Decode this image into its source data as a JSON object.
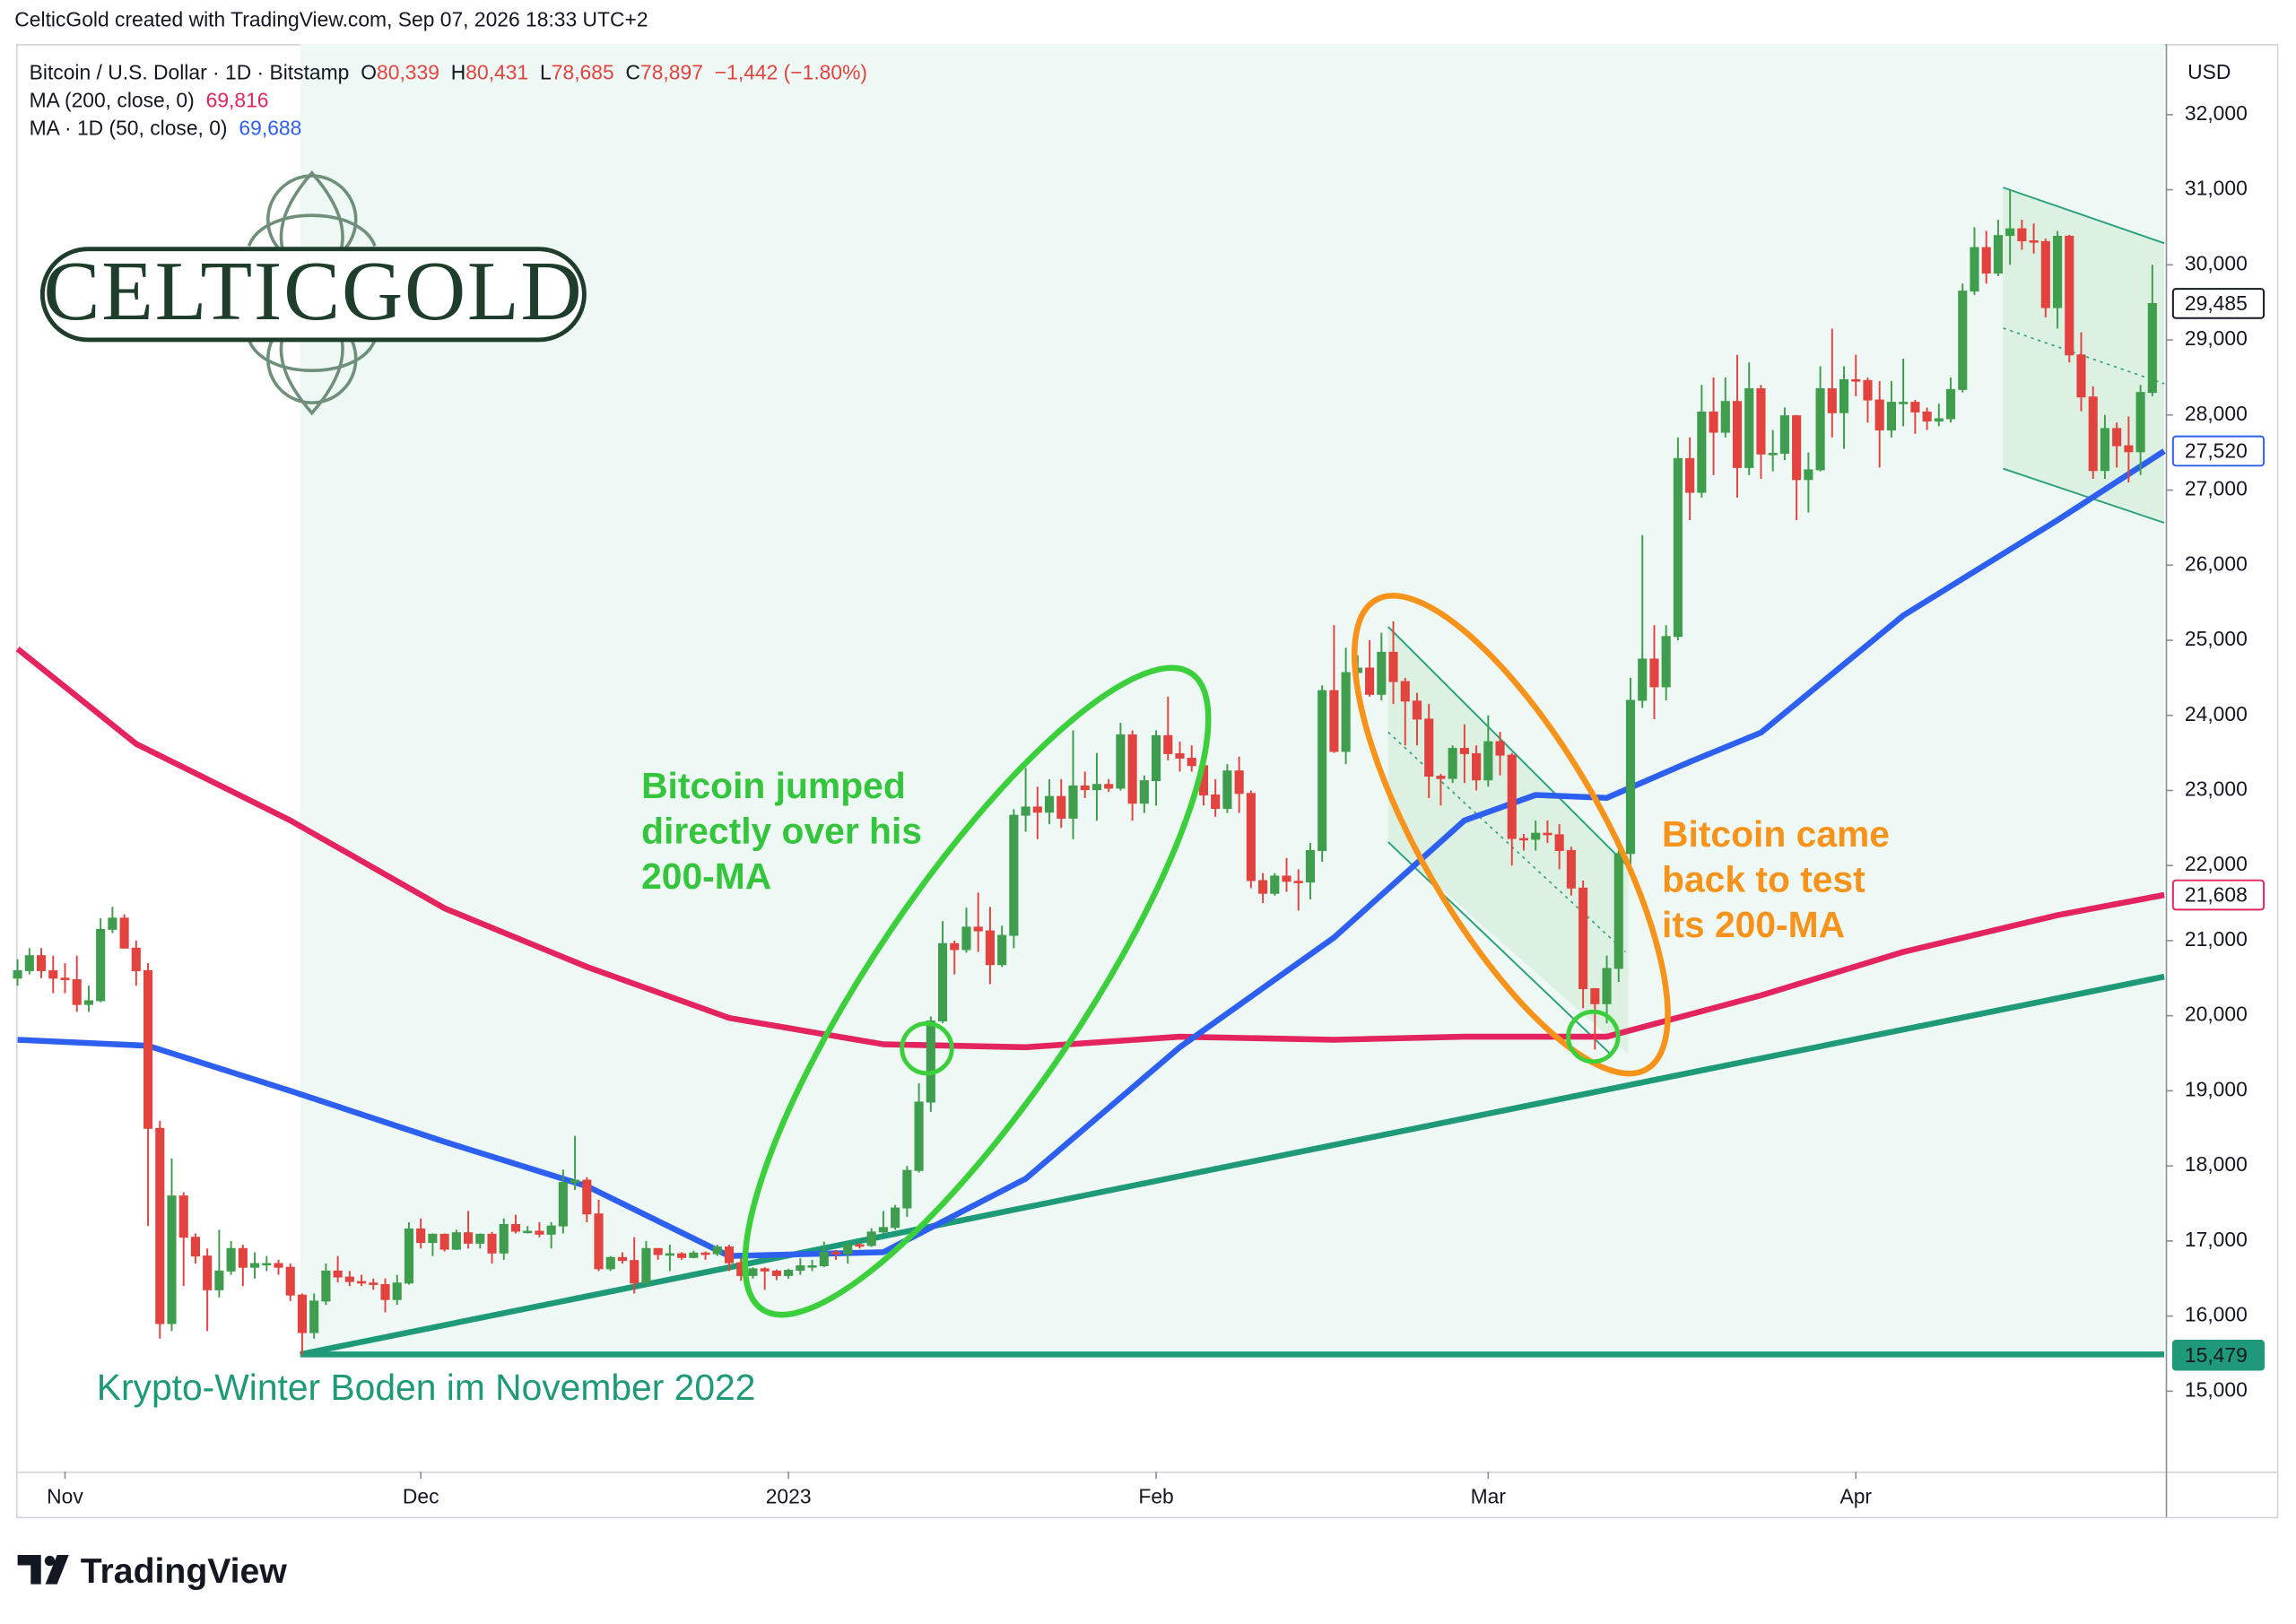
{
  "header": {
    "text": "CelticGold created with TradingView.com, Sep 07, 2026 18:33 UTC+2"
  },
  "logo": {
    "text": "CELTICGOLD"
  },
  "footer": {
    "brand": "TradingView"
  },
  "chart_data": {
    "type": "candlestick",
    "up_color": "#3f9e4d",
    "down_color": "#e2433f",
    "grid": false,
    "axis_unit": "USD",
    "legend": {
      "symbol": "Bitcoin / U.S. Dollar · 1D · Bitstamp",
      "items": [
        [
          "O",
          "80,339"
        ],
        [
          "H",
          "80,431"
        ],
        [
          "L",
          "78,685"
        ],
        [
          "C",
          "78,897"
        ]
      ],
      "change": "−1,442 (−1.80%)"
    },
    "xlim": [
      0,
      181
    ],
    "xticks": [
      {
        "value": 4,
        "label": "Nov"
      },
      {
        "value": 34,
        "label": "Dec"
      },
      {
        "value": 65,
        "label": "2023"
      },
      {
        "value": 96,
        "label": "Feb"
      },
      {
        "value": 124,
        "label": "Mar"
      },
      {
        "value": 155,
        "label": "Apr"
      }
    ],
    "ylim": [
      13930,
      32940
    ],
    "yticks": [
      {
        "value": 15000,
        "label": "15,000"
      },
      {
        "value": 16000,
        "label": "16,000"
      },
      {
        "value": 17000,
        "label": "17,000"
      },
      {
        "value": 18000,
        "label": "18,000"
      },
      {
        "value": 19000,
        "label": "19,000"
      },
      {
        "value": 20000,
        "label": "20,000"
      },
      {
        "value": 21000,
        "label": "21,000"
      },
      {
        "value": 22000,
        "label": "22,000"
      },
      {
        "value": 23000,
        "label": "23,000"
      },
      {
        "value": 24000,
        "label": "24,000"
      },
      {
        "value": 25000,
        "label": "25,000"
      },
      {
        "value": 26000,
        "label": "26,000"
      },
      {
        "value": 27000,
        "label": "27,000"
      },
      {
        "value": 28000,
        "label": "28,000"
      },
      {
        "value": 29000,
        "label": "29,000"
      },
      {
        "value": 30000,
        "label": "30,000"
      },
      {
        "value": 31000,
        "label": "31,000"
      },
      {
        "value": 32000,
        "label": "32,000"
      }
    ],
    "indicators": [
      {
        "name": "MA (200, close, 0)",
        "value_text": "69,816",
        "color": "#e3245f",
        "x": [
          0,
          10,
          23,
          36,
          48,
          60,
          73,
          85,
          98,
          111,
          122,
          134,
          147,
          159,
          172,
          181
        ],
        "values": [
          24885,
          23620,
          22600,
          21430,
          20650,
          19970,
          19620,
          19580,
          19720,
          19680,
          19720,
          19720,
          20270,
          20850,
          21340,
          21608
        ]
      },
      {
        "name": "MA · 1D (50, close, 0)",
        "value_text": "69,688",
        "color": "#2d5ff0",
        "x": [
          0,
          11,
          23,
          36,
          48,
          60,
          73,
          79,
          85,
          98,
          111,
          122,
          128,
          134,
          141,
          147,
          159,
          172,
          181
        ],
        "values": [
          19680,
          19600,
          19000,
          18320,
          17730,
          16800,
          16850,
          17340,
          17830,
          19580,
          21040,
          22600,
          22940,
          22900,
          23380,
          23770,
          25330,
          26600,
          27520
        ]
      }
    ],
    "price_labels": [
      {
        "value": 29485,
        "label": "29,485",
        "color": "#131722"
      },
      {
        "value": 27520,
        "label": "27,520",
        "color": "#2d5ff0"
      },
      {
        "value": 21608,
        "label": "21,608",
        "color": "#e3245f"
      },
      {
        "value": 15479,
        "label": "15,479",
        "color": "#1f9a78",
        "filled": true
      }
    ],
    "annotations": {
      "jump": [
        "Bitcoin jumped",
        "directly over his",
        "200-MA"
      ],
      "test": [
        "Bitcoin came",
        "back to test",
        "its 200-MA"
      ],
      "bottom": "Krypto-Winter Boden im November 2022"
    },
    "candles": [
      [
        20500,
        20750,
        20400,
        20600
      ],
      [
        20600,
        20900,
        20550,
        20800
      ],
      [
        20800,
        20900,
        20500,
        20600
      ],
      [
        20600,
        20800,
        20300,
        20500
      ],
      [
        20500,
        20700,
        20300,
        20480
      ],
      [
        20480,
        20800,
        20050,
        20150
      ],
      [
        20150,
        20400,
        20050,
        20200
      ],
      [
        20200,
        21300,
        20180,
        21150
      ],
      [
        21150,
        21450,
        21100,
        21300
      ],
      [
        21300,
        21350,
        20900,
        20900
      ],
      [
        20900,
        21000,
        20400,
        20600
      ],
      [
        20600,
        20700,
        17200,
        18500
      ],
      [
        18500,
        18600,
        15700,
        15900
      ],
      [
        15900,
        18100,
        15800,
        17600
      ],
      [
        17600,
        17650,
        16400,
        17050
      ],
      [
        17050,
        17100,
        16700,
        16800
      ],
      [
        16800,
        16900,
        15800,
        16350
      ],
      [
        16350,
        17150,
        16250,
        16600
      ],
      [
        16600,
        17000,
        16550,
        16900
      ],
      [
        16900,
        16950,
        16400,
        16650
      ],
      [
        16650,
        16850,
        16500,
        16700
      ],
      [
        16700,
        16800,
        16600,
        16700
      ],
      [
        16700,
        16750,
        16550,
        16650
      ],
      [
        16650,
        16700,
        16200,
        16280
      ],
      [
        16280,
        16300,
        15480,
        15780
      ],
      [
        15780,
        16300,
        15700,
        16200
      ],
      [
        16200,
        16700,
        16150,
        16600
      ],
      [
        16600,
        16800,
        16450,
        16520
      ],
      [
        16520,
        16600,
        16400,
        16460
      ],
      [
        16460,
        16550,
        16400,
        16440
      ],
      [
        16440,
        16500,
        16350,
        16420
      ],
      [
        16420,
        16500,
        16050,
        16220
      ],
      [
        16220,
        16550,
        16150,
        16440
      ],
      [
        16440,
        17250,
        16420,
        17160
      ],
      [
        17160,
        17300,
        16900,
        16980
      ],
      [
        16980,
        17100,
        16800,
        17090
      ],
      [
        17090,
        17100,
        16860,
        16890
      ],
      [
        16890,
        17150,
        16880,
        17110
      ],
      [
        17110,
        17400,
        16900,
        16970
      ],
      [
        16970,
        17100,
        16900,
        17090
      ],
      [
        17090,
        17120,
        16700,
        16840
      ],
      [
        16840,
        17300,
        16750,
        17220
      ],
      [
        17220,
        17350,
        17100,
        17130
      ],
      [
        17130,
        17200,
        17100,
        17130
      ],
      [
        17130,
        17250,
        17050,
        17090
      ],
      [
        17090,
        17250,
        16900,
        17200
      ],
      [
        17200,
        17950,
        17100,
        17780
      ],
      [
        17780,
        18400,
        17680,
        17810
      ],
      [
        17810,
        17850,
        17250,
        17360
      ],
      [
        17360,
        17550,
        16600,
        16630
      ],
      [
        16630,
        16800,
        16600,
        16780
      ],
      [
        16780,
        16850,
        16700,
        16740
      ],
      [
        16740,
        17050,
        16300,
        16440
      ],
      [
        16440,
        17000,
        16400,
        16900
      ],
      [
        16900,
        16900,
        16750,
        16820
      ],
      [
        16820,
        16950,
        16600,
        16830
      ],
      [
        16830,
        16850,
        16750,
        16780
      ],
      [
        16780,
        16870,
        16770,
        16840
      ],
      [
        16840,
        16860,
        16750,
        16830
      ],
      [
        16830,
        16950,
        16800,
        16920
      ],
      [
        16920,
        16950,
        16600,
        16710
      ],
      [
        16710,
        16780,
        16470,
        16540
      ],
      [
        16540,
        16650,
        16500,
        16630
      ],
      [
        16630,
        16650,
        16350,
        16600
      ],
      [
        16600,
        16620,
        16480,
        16540
      ],
      [
        16540,
        16630,
        16500,
        16610
      ],
      [
        16610,
        16770,
        16550,
        16670
      ],
      [
        16670,
        16750,
        16600,
        16670
      ],
      [
        16670,
        16990,
        16650,
        16850
      ],
      [
        16850,
        16880,
        16750,
        16830
      ],
      [
        16830,
        17000,
        16700,
        16950
      ],
      [
        16950,
        16970,
        16900,
        16940
      ],
      [
        16940,
        17170,
        16920,
        17120
      ],
      [
        17120,
        17400,
        17100,
        17180
      ],
      [
        17180,
        17480,
        17150,
        17440
      ],
      [
        17440,
        18000,
        17320,
        17940
      ],
      [
        17940,
        19100,
        17910,
        18850
      ],
      [
        18850,
        19990,
        18720,
        19930
      ],
      [
        19930,
        21260,
        19900,
        20960
      ],
      [
        20960,
        21000,
        20550,
        20880
      ],
      [
        20880,
        21440,
        20840,
        21180
      ],
      [
        21180,
        21640,
        20850,
        21130
      ],
      [
        21130,
        21450,
        20420,
        20680
      ],
      [
        20680,
        21200,
        20650,
        21070
      ],
      [
        21070,
        22750,
        20900,
        22670
      ],
      [
        22670,
        23300,
        22450,
        22780
      ],
      [
        22780,
        23050,
        22350,
        22710
      ],
      [
        22710,
        23150,
        22550,
        22920
      ],
      [
        22920,
        23150,
        22500,
        22630
      ],
      [
        22630,
        23800,
        22350,
        23060
      ],
      [
        23060,
        23250,
        22900,
        23010
      ],
      [
        23010,
        23500,
        22600,
        23080
      ],
      [
        23080,
        23150,
        22980,
        23030
      ],
      [
        23030,
        23900,
        23000,
        23740
      ],
      [
        23740,
        23800,
        22600,
        22830
      ],
      [
        22830,
        23200,
        22700,
        23130
      ],
      [
        23130,
        23800,
        22800,
        23730
      ],
      [
        23730,
        24250,
        23400,
        23490
      ],
      [
        23490,
        23650,
        23250,
        23430
      ],
      [
        23430,
        23600,
        23250,
        23330
      ],
      [
        23330,
        23400,
        22800,
        22940
      ],
      [
        22940,
        23150,
        22650,
        22760
      ],
      [
        22760,
        23350,
        22700,
        23260
      ],
      [
        23260,
        23450,
        22700,
        22960
      ],
      [
        22960,
        23000,
        21700,
        21800
      ],
      [
        21800,
        21900,
        21500,
        21630
      ],
      [
        21630,
        21900,
        21600,
        21860
      ],
      [
        21860,
        22100,
        21650,
        21790
      ],
      [
        21790,
        21950,
        21400,
        21780
      ],
      [
        21780,
        22300,
        21550,
        22200
      ],
      [
        22200,
        24400,
        22050,
        24330
      ],
      [
        24330,
        25200,
        23500,
        23520
      ],
      [
        23520,
        24900,
        23350,
        24570
      ],
      [
        24570,
        24800,
        24450,
        24630
      ],
      [
        24630,
        25000,
        24250,
        24280
      ],
      [
        24280,
        25100,
        24200,
        24840
      ],
      [
        24840,
        25250,
        24150,
        24450
      ],
      [
        24450,
        24500,
        23600,
        24190
      ],
      [
        24190,
        24300,
        23600,
        23950
      ],
      [
        23950,
        24150,
        22900,
        23190
      ],
      [
        23190,
        23220,
        22800,
        23160
      ],
      [
        23160,
        23600,
        23100,
        23560
      ],
      [
        23560,
        23880,
        23100,
        23490
      ],
      [
        23490,
        23600,
        23000,
        23140
      ],
      [
        23140,
        24000,
        23050,
        23650
      ],
      [
        23650,
        23780,
        23200,
        23470
      ],
      [
        23470,
        23500,
        22000,
        22360
      ],
      [
        22360,
        22420,
        22200,
        22350
      ],
      [
        22350,
        22600,
        22200,
        22430
      ],
      [
        22430,
        22600,
        22300,
        22410
      ],
      [
        22410,
        22550,
        21950,
        22200
      ],
      [
        22200,
        22250,
        21600,
        21700
      ],
      [
        21700,
        21800,
        20100,
        20360
      ],
      [
        20360,
        20370,
        19550,
        20160
      ],
      [
        20160,
        20800,
        19900,
        20630
      ],
      [
        20630,
        22200,
        20450,
        22160
      ],
      [
        22160,
        24500,
        21950,
        24200
      ],
      [
        24200,
        26400,
        24100,
        24750
      ],
      [
        24750,
        25200,
        23950,
        24380
      ],
      [
        24380,
        25200,
        24200,
        25050
      ],
      [
        25050,
        27700,
        25000,
        27420
      ],
      [
        27420,
        27700,
        26600,
        26970
      ],
      [
        26970,
        28400,
        26900,
        28040
      ],
      [
        28040,
        28500,
        27200,
        27770
      ],
      [
        27770,
        28500,
        27700,
        28180
      ],
      [
        28180,
        28800,
        26900,
        27300
      ],
      [
        27300,
        28700,
        27200,
        28350
      ],
      [
        28350,
        28400,
        27150,
        27480
      ],
      [
        27480,
        27800,
        27250,
        27490
      ],
      [
        27490,
        28100,
        27400,
        27990
      ],
      [
        27990,
        28000,
        26600,
        27140
      ],
      [
        27140,
        27500,
        26700,
        27270
      ],
      [
        27270,
        28650,
        27250,
        28350
      ],
      [
        28350,
        29150,
        27700,
        28030
      ],
      [
        28030,
        28650,
        27550,
        28470
      ],
      [
        28470,
        28800,
        28250,
        28460
      ],
      [
        28460,
        28500,
        27900,
        28200
      ],
      [
        28200,
        28450,
        27300,
        27800
      ],
      [
        27800,
        28450,
        27700,
        28170
      ],
      [
        28170,
        28750,
        27850,
        28170
      ],
      [
        28170,
        28200,
        27750,
        28040
      ],
      [
        28040,
        28100,
        27800,
        27920
      ],
      [
        27920,
        28150,
        27850,
        27950
      ],
      [
        27950,
        28500,
        27900,
        28340
      ],
      [
        28340,
        29750,
        28300,
        29650
      ],
      [
        29650,
        30500,
        29600,
        30230
      ],
      [
        30230,
        30450,
        29750,
        29890
      ],
      [
        29890,
        30600,
        29850,
        30390
      ],
      [
        30390,
        31000,
        30000,
        30480
      ],
      [
        30480,
        30600,
        30200,
        30320
      ],
      [
        30320,
        30550,
        30150,
        30310
      ],
      [
        30310,
        30350,
        29300,
        29430
      ],
      [
        29430,
        30450,
        29150,
        30380
      ],
      [
        30380,
        30400,
        28700,
        28800
      ],
      [
        28800,
        29100,
        28050,
        28240
      ],
      [
        28240,
        28380,
        27150,
        27260
      ],
      [
        27260,
        28000,
        27150,
        27820
      ],
      [
        27820,
        27900,
        27300,
        27590
      ],
      [
        27590,
        27980,
        27100,
        27510
      ],
      [
        27510,
        28400,
        27200,
        28300
      ],
      [
        28300,
        30000,
        28250,
        29485
      ]
    ]
  }
}
